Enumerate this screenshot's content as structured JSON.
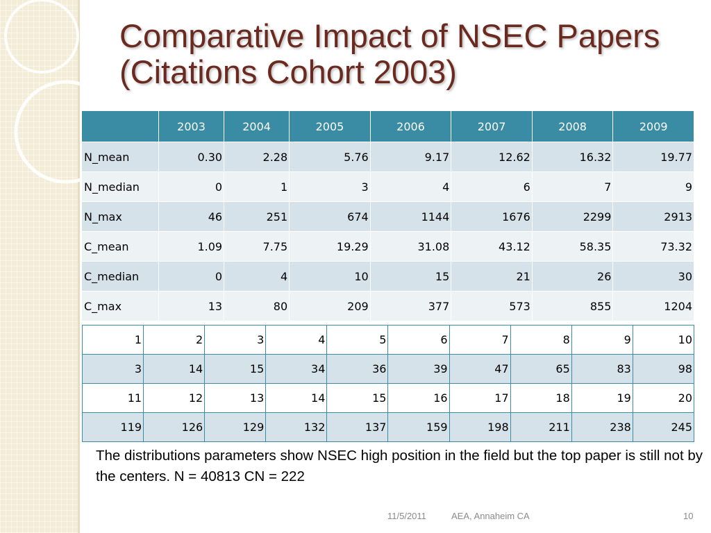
{
  "title": "Comparative Impact of NSEC Papers (Citations Cohort 2003)",
  "main_table": {
    "corner": "",
    "columns": [
      "2003",
      "2004",
      "2005",
      "2006",
      "2007",
      "2008",
      "2009"
    ],
    "rows": [
      {
        "label": "N_mean",
        "values": [
          "0.30",
          "2.28",
          "5.76",
          "9.17",
          "12.62",
          "16.32",
          "19.77"
        ]
      },
      {
        "label": "N_median",
        "values": [
          "0",
          "1",
          "3",
          "4",
          "6",
          "7",
          "9"
        ]
      },
      {
        "label": "N_max",
        "values": [
          "46",
          "251",
          "674",
          "1144",
          "1676",
          "2299",
          "2913"
        ]
      },
      {
        "label": "C_mean",
        "values": [
          "1.09",
          "7.75",
          "19.29",
          "31.08",
          "43.12",
          "58.35",
          "73.32"
        ]
      },
      {
        "label": "C_median",
        "values": [
          "0",
          "4",
          "10",
          "15",
          "21",
          "26",
          "30"
        ]
      },
      {
        "label": "C_max",
        "values": [
          "13",
          "80",
          "209",
          "377",
          "573",
          "855",
          "1204"
        ]
      }
    ]
  },
  "dist_table": {
    "rows": [
      [
        "1",
        "2",
        "3",
        "4",
        "5",
        "6",
        "7",
        "8",
        "9",
        "10"
      ],
      [
        "3",
        "14",
        "15",
        "34",
        "36",
        "39",
        "47",
        "65",
        "83",
        "98"
      ],
      [
        "11",
        "12",
        "13",
        "14",
        "15",
        "16",
        "17",
        "18",
        "19",
        "20"
      ],
      [
        "119",
        "126",
        "129",
        "132",
        "137",
        "159",
        "198",
        "211",
        "238",
        "245"
      ]
    ]
  },
  "caption": "The distributions parameters show NSEC high position in the field but the top paper is still not by the centers. N = 40813 CN = 222",
  "footer": {
    "date": "11/5/2011",
    "venue": "AEA, Annaheim CA",
    "page": "10"
  },
  "colors": {
    "title": "#6b2a1f",
    "header_bg": "#3a8ca4",
    "band_bg": "#f3ecd6",
    "row_dark": "#d6e2e9",
    "row_light": "#edf2f5"
  }
}
